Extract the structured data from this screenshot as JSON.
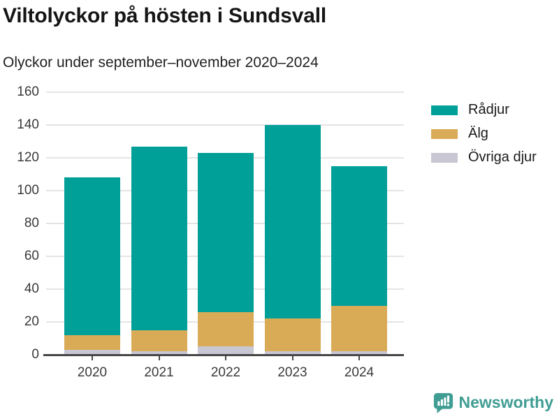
{
  "header": {
    "title": "Viltolyckor på hösten i Sundsvall",
    "subtitle": "Olyckor under september–november 2020–2024"
  },
  "chart_data": {
    "type": "bar",
    "stacked": true,
    "title": "Viltolyckor på hösten i Sundsvall",
    "subtitle": "Olyckor under september–november 2020–2024",
    "categories": [
      "2020",
      "2021",
      "2022",
      "2023",
      "2024"
    ],
    "series": [
      {
        "name": "Rådjur",
        "color": "#00a099",
        "values": [
          96,
          112,
          97,
          118,
          85
        ]
      },
      {
        "name": "Älg",
        "color": "#d9ab57",
        "values": [
          9,
          13,
          21,
          20,
          28
        ]
      },
      {
        "name": "Övriga djur",
        "color": "#c9c7d3",
        "values": [
          3,
          2,
          5,
          2,
          2
        ]
      }
    ],
    "totals": [
      108,
      127,
      123,
      140,
      115
    ],
    "ylabel": "",
    "xlabel": "",
    "ylim": [
      0,
      160
    ],
    "yticks": [
      0,
      20,
      40,
      60,
      80,
      100,
      120,
      140,
      160
    ],
    "grid": true,
    "legend_position": "right",
    "axis_color": "#474747",
    "gridline_color": "#e4e4e4"
  },
  "footer": {
    "brand": "Newsworthy",
    "brand_color": "#3f9d93",
    "logo_icon": "bar-chart-speech-bubble"
  }
}
